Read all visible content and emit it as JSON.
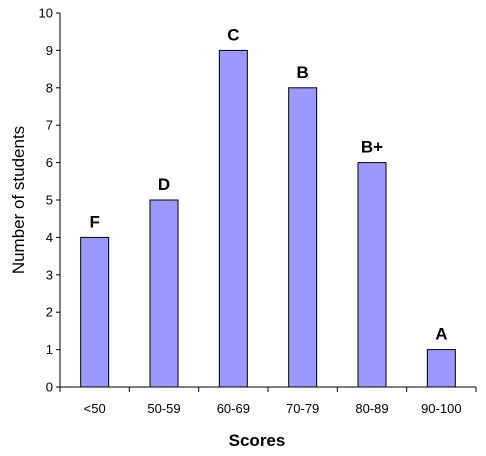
{
  "chart_data": {
    "type": "bar",
    "categories": [
      "<50",
      "50-59",
      "60-69",
      "70-79",
      "80-89",
      "90-100"
    ],
    "values": [
      4,
      5,
      9,
      8,
      6,
      1
    ],
    "bar_labels": [
      "F",
      "D",
      "C",
      "B",
      "B+",
      "A"
    ],
    "title": "",
    "xlabel": "Scores",
    "ylabel": "Number of students",
    "ylim": [
      0,
      10
    ],
    "yticks": [
      0,
      1,
      2,
      3,
      4,
      5,
      6,
      7,
      8,
      9,
      10
    ],
    "grid": false,
    "legend": "none",
    "colors": {
      "bar_fill": "#9999ff",
      "bar_stroke": "#000000",
      "axis": "#000000"
    }
  }
}
